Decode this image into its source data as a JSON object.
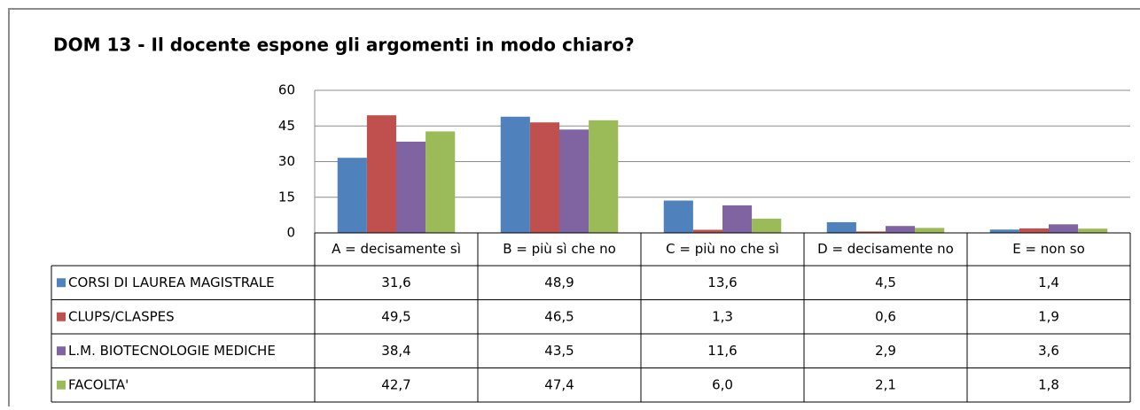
{
  "chart_data": {
    "type": "bar",
    "title": "DOM  13 - Il docente espone gli argomenti in modo chiaro?",
    "categories": [
      "A = decisamente sì",
      "B = più sì che no",
      "C = più no che sì",
      "D = decisamente no",
      "E = non so"
    ],
    "series": [
      {
        "name": "CORSI DI LAUREA MAGISTRALE",
        "color": "#4f81bd",
        "values": [
          31.6,
          48.9,
          13.6,
          4.5,
          1.4
        ],
        "value_labels": [
          "31,6",
          "48,9",
          "13,6",
          "4,5",
          "1,4"
        ]
      },
      {
        "name": "CLUPS/CLASPES",
        "color": "#c0504d",
        "values": [
          49.5,
          46.5,
          1.3,
          0.6,
          1.9
        ],
        "value_labels": [
          "49,5",
          "46,5",
          "1,3",
          "0,6",
          "1,9"
        ]
      },
      {
        "name": "L.M. BIOTECNOLOGIE MEDICHE",
        "color": "#8064a2",
        "values": [
          38.4,
          43.5,
          11.6,
          2.9,
          3.6
        ],
        "value_labels": [
          "38,4",
          "43,5",
          "11,6",
          "2,9",
          "3,6"
        ]
      },
      {
        "name": "FACOLTA'",
        "color": "#9bbb59",
        "values": [
          42.7,
          47.4,
          6.0,
          2.1,
          1.8
        ],
        "value_labels": [
          "42,7",
          "47,4",
          "6,0",
          "2,1",
          "1,8"
        ]
      }
    ],
    "ylim": [
      0,
      60
    ],
    "yticks": [
      0,
      15,
      30,
      45,
      60
    ],
    "grid": true
  }
}
